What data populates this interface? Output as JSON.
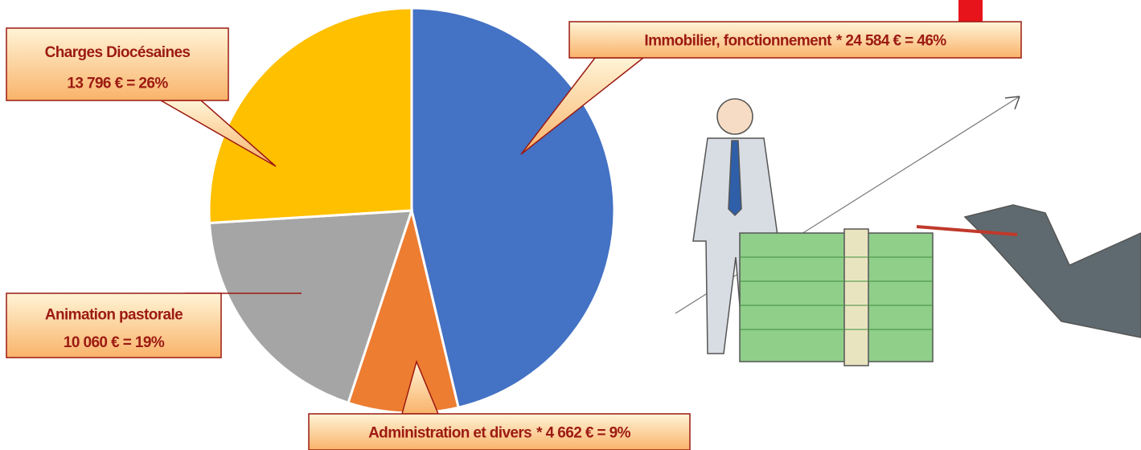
{
  "chart_data": {
    "type": "pie",
    "categories": [
      "Immobilier, fonctionnement",
      "Administration et divers",
      "Animation pastorale",
      "Charges Diocésaines"
    ],
    "values": [
      24584,
      4662,
      10060,
      13796
    ],
    "value_labels": [
      "* 24 584 € = 46%",
      "* 4 662 € = 9%",
      "10 060 € = 19%",
      "13 796 € = 26%"
    ],
    "colors": [
      "#4472c4",
      "#ed7d31",
      "#a5a5a5",
      "#ffc000"
    ]
  }
}
